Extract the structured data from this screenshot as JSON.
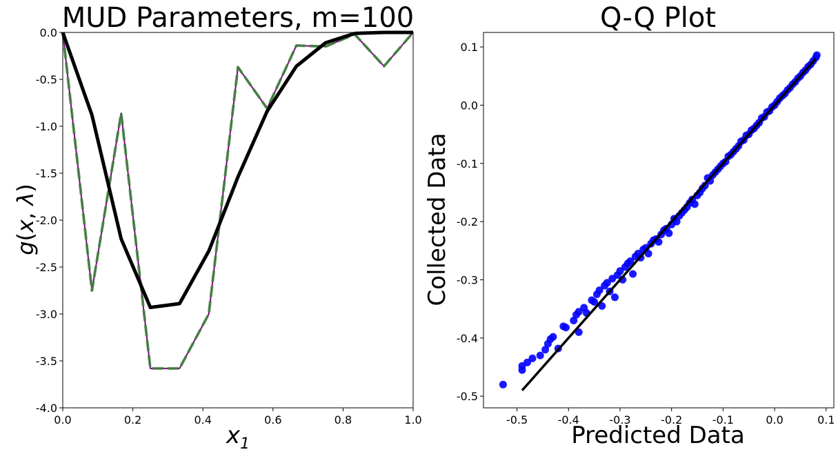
{
  "chart_data": [
    {
      "type": "line",
      "title": "MUD Parameters, m=100",
      "xlabel": "x₁",
      "ylabel": "g(x, λ)",
      "xlim": [
        0.0,
        1.0
      ],
      "ylim": [
        -4.0,
        0.0
      ],
      "xticks": [
        "0.0",
        "0.2",
        "0.4",
        "0.6",
        "0.8",
        "1.0"
      ],
      "yticks": [
        "0.0",
        "-0.5",
        "-1.0",
        "-1.5",
        "-2.0",
        "-2.5",
        "-3.0",
        "-3.5",
        "-4.0"
      ],
      "grid": false,
      "series": [
        {
          "style": "solid",
          "color": "#000000",
          "x": [
            0.0,
            0.0833,
            0.1667,
            0.25,
            0.3333,
            0.4167,
            0.5,
            0.5833,
            0.6667,
            0.75,
            0.8333,
            0.9167,
            1.0
          ],
          "y": [
            0.0,
            -0.88,
            -2.2,
            -2.93,
            -2.89,
            -2.33,
            -1.54,
            -0.84,
            -0.36,
            -0.11,
            -0.01,
            0.0,
            0.0
          ]
        },
        {
          "style": "solid-thin",
          "color": "#800080",
          "x": [
            0.0,
            0.0833,
            0.1667,
            0.25,
            0.3333,
            0.4167,
            0.5,
            0.5833,
            0.6667,
            0.75,
            0.8333,
            0.9167,
            1.0
          ],
          "y": [
            0.0,
            -2.75,
            -0.86,
            -3.58,
            -3.58,
            -3.0,
            -0.37,
            -0.81,
            -0.14,
            -0.15,
            -0.02,
            -0.36,
            0.0
          ]
        },
        {
          "style": "dashed",
          "color": "#3a8a3a",
          "x": [
            0.0,
            0.0833,
            0.1667,
            0.25,
            0.3333,
            0.4167,
            0.5,
            0.5833,
            0.6667,
            0.75,
            0.8333,
            0.9167,
            1.0
          ],
          "y": [
            0.0,
            -2.75,
            -0.86,
            -3.58,
            -3.58,
            -3.0,
            -0.37,
            -0.81,
            -0.14,
            -0.15,
            -0.02,
            -0.36,
            0.0
          ]
        }
      ]
    },
    {
      "type": "scatter",
      "title": "Q-Q Plot",
      "xlabel": "Predicted Data",
      "ylabel": "Collected Data",
      "xlim": [
        -0.565,
        0.115
      ],
      "ylim": [
        -0.52,
        0.125
      ],
      "xticks": [
        "-0.5",
        "-0.4",
        "-0.3",
        "-0.2",
        "-0.1",
        "0.0",
        "0.1"
      ],
      "yticks": [
        "0.1",
        "0.0",
        "-0.1",
        "-0.2",
        "-0.3",
        "-0.4",
        "-0.5"
      ],
      "grid": false,
      "reference_line": {
        "color": "#000000",
        "x": [
          -0.49,
          0.08
        ],
        "y": [
          -0.49,
          0.08
        ]
      },
      "points_color": "#0000ff",
      "points": [
        [
          -0.527,
          -0.48
        ],
        [
          -0.49,
          -0.455
        ],
        [
          -0.49,
          -0.448
        ],
        [
          -0.48,
          -0.442
        ],
        [
          -0.47,
          -0.435
        ],
        [
          -0.455,
          -0.43
        ],
        [
          -0.445,
          -0.42
        ],
        [
          -0.44,
          -0.41
        ],
        [
          -0.435,
          -0.402
        ],
        [
          -0.43,
          -0.398
        ],
        [
          -0.42,
          -0.418
        ],
        [
          -0.41,
          -0.38
        ],
        [
          -0.405,
          -0.382
        ],
        [
          -0.39,
          -0.37
        ],
        [
          -0.385,
          -0.36
        ],
        [
          -0.38,
          -0.39
        ],
        [
          -0.38,
          -0.355
        ],
        [
          -0.37,
          -0.348
        ],
        [
          -0.365,
          -0.357
        ],
        [
          -0.355,
          -0.335
        ],
        [
          -0.35,
          -0.338
        ],
        [
          -0.345,
          -0.325
        ],
        [
          -0.34,
          -0.318
        ],
        [
          -0.335,
          -0.345
        ],
        [
          -0.33,
          -0.31
        ],
        [
          -0.325,
          -0.305
        ],
        [
          -0.32,
          -0.32
        ],
        [
          -0.315,
          -0.298
        ],
        [
          -0.31,
          -0.33
        ],
        [
          -0.305,
          -0.292
        ],
        [
          -0.3,
          -0.285
        ],
        [
          -0.295,
          -0.3
        ],
        [
          -0.29,
          -0.278
        ],
        [
          -0.285,
          -0.272
        ],
        [
          -0.28,
          -0.268
        ],
        [
          -0.275,
          -0.29
        ],
        [
          -0.27,
          -0.26
        ],
        [
          -0.265,
          -0.255
        ],
        [
          -0.26,
          -0.262
        ],
        [
          -0.255,
          -0.248
        ],
        [
          -0.25,
          -0.245
        ],
        [
          -0.245,
          -0.255
        ],
        [
          -0.24,
          -0.238
        ],
        [
          -0.235,
          -0.232
        ],
        [
          -0.23,
          -0.23
        ],
        [
          -0.225,
          -0.235
        ],
        [
          -0.22,
          -0.222
        ],
        [
          -0.215,
          -0.215
        ],
        [
          -0.21,
          -0.212
        ],
        [
          -0.205,
          -0.22
        ],
        [
          -0.2,
          -0.205
        ],
        [
          -0.195,
          -0.195
        ],
        [
          -0.19,
          -0.2
        ],
        [
          -0.185,
          -0.19
        ],
        [
          -0.18,
          -0.185
        ],
        [
          -0.175,
          -0.18
        ],
        [
          -0.17,
          -0.175
        ],
        [
          -0.165,
          -0.168
        ],
        [
          -0.16,
          -0.162
        ],
        [
          -0.155,
          -0.17
        ],
        [
          -0.15,
          -0.155
        ],
        [
          -0.145,
          -0.15
        ],
        [
          -0.14,
          -0.143
        ],
        [
          -0.135,
          -0.138
        ],
        [
          -0.13,
          -0.125
        ],
        [
          -0.125,
          -0.13
        ],
        [
          -0.12,
          -0.12
        ],
        [
          -0.115,
          -0.115
        ],
        [
          -0.11,
          -0.11
        ],
        [
          -0.105,
          -0.105
        ],
        [
          -0.1,
          -0.1
        ],
        [
          -0.095,
          -0.097
        ],
        [
          -0.09,
          -0.088
        ],
        [
          -0.085,
          -0.085
        ],
        [
          -0.08,
          -0.08
        ],
        [
          -0.075,
          -0.075
        ],
        [
          -0.07,
          -0.07
        ],
        [
          -0.065,
          -0.062
        ],
        [
          -0.06,
          -0.06
        ],
        [
          -0.055,
          -0.052
        ],
        [
          -0.05,
          -0.05
        ],
        [
          -0.045,
          -0.043
        ],
        [
          -0.04,
          -0.04
        ],
        [
          -0.035,
          -0.035
        ],
        [
          -0.03,
          -0.03
        ],
        [
          -0.025,
          -0.022
        ],
        [
          -0.02,
          -0.02
        ],
        [
          -0.015,
          -0.012
        ],
        [
          -0.01,
          -0.01
        ],
        [
          -0.005,
          -0.003
        ],
        [
          0.0,
          0.0
        ],
        [
          0.005,
          0.006
        ],
        [
          0.01,
          0.012
        ],
        [
          0.015,
          0.016
        ],
        [
          0.02,
          0.02
        ],
        [
          0.025,
          0.026
        ],
        [
          0.03,
          0.03
        ],
        [
          0.035,
          0.036
        ],
        [
          0.04,
          0.04
        ],
        [
          0.045,
          0.046
        ],
        [
          0.05,
          0.05
        ],
        [
          0.055,
          0.056
        ],
        [
          0.06,
          0.06
        ],
        [
          0.065,
          0.066
        ],
        [
          0.07,
          0.07
        ],
        [
          0.075,
          0.076
        ],
        [
          0.08,
          0.082
        ],
        [
          0.082,
          0.086
        ]
      ]
    }
  ]
}
